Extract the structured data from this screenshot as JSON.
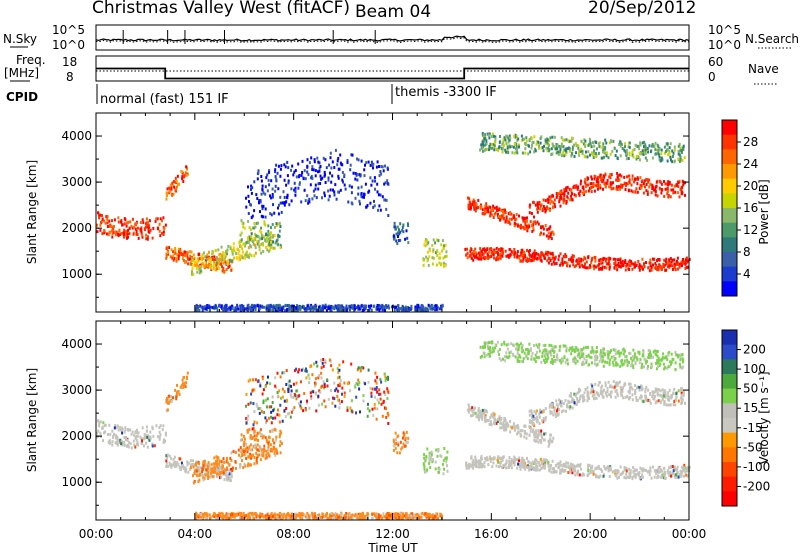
{
  "header": {
    "station": "Christmas Valley West (fitACF)",
    "beam": "Beam 04",
    "date": "20/Sep/2012"
  },
  "noise_panel": {
    "left_label": "N.Sky",
    "left_ticks": [
      "10^5",
      "10^0"
    ],
    "right_ticks": [
      "10^5",
      "10^0"
    ],
    "right_label": "N.Search"
  },
  "freq_panel": {
    "left_label_line1": "Freq.",
    "left_label_line2": "[MHz]",
    "left_ticks": [
      "18",
      "8"
    ],
    "right_ticks": [
      "60",
      "0"
    ],
    "right_label": "Nave"
  },
  "cpid": {
    "label": "CPID",
    "segments": [
      {
        "text": "normal (fast) 151 IF"
      },
      {
        "text": "themis -3300 IF"
      }
    ]
  },
  "colorbars": {
    "power": {
      "title": "Power [dB]",
      "ticks": [
        "28",
        "24",
        "20",
        "16",
        "12",
        "8",
        "4"
      ],
      "colors": [
        "#ff0000",
        "#ff3300",
        "#ff6600",
        "#ff9900",
        "#ffcc00",
        "#c8d400",
        "#8ab86a",
        "#4c9a6a",
        "#2e7a7a",
        "#3b5fa8",
        "#1a3ccf",
        "#0000ff"
      ]
    },
    "velocity": {
      "title": "Velocity [m s⁻¹]",
      "ticks": [
        "200",
        "100",
        "50",
        "15",
        "-15",
        "-50",
        "-100",
        "-200"
      ],
      "colors": [
        "#1a2fb0",
        "#2b4bc9",
        "#2d7a5a",
        "#4caa3c",
        "#7bd24a",
        "#c0c0b8",
        "#c8c8c0",
        "#ff9900",
        "#ff7700",
        "#ff4400",
        "#ff1a00",
        "#ff0000"
      ]
    }
  },
  "chart_data": [
    {
      "type": "heatmap",
      "title": "Power [dB]",
      "xlabel": "Time UT",
      "ylabel": "Slant Range [km]",
      "x_ticks": [
        "00:00",
        "04:00",
        "08:00",
        "12:00",
        "16:00",
        "20:00",
        "00:00"
      ],
      "y_ticks": [
        "1000",
        "2000",
        "3000",
        "4000"
      ],
      "xlim": [
        0,
        24
      ],
      "ylim": [
        180,
        4500
      ],
      "colorbar_ticks": [
        4,
        8,
        12,
        16,
        20,
        24,
        28
      ],
      "colorbar_range": [
        0,
        30
      ]
    },
    {
      "type": "heatmap",
      "title": "Velocity [m s⁻¹]",
      "xlabel": "Time UT",
      "ylabel": "Slant Range [km]",
      "x_ticks": [
        "00:00",
        "04:00",
        "08:00",
        "12:00",
        "16:00",
        "20:00",
        "00:00"
      ],
      "y_ticks": [
        "1000",
        "2000",
        "3000",
        "4000"
      ],
      "xlim": [
        0,
        24
      ],
      "ylim": [
        180,
        4500
      ],
      "colorbar_ticks": [
        -200,
        -100,
        -50,
        -15,
        15,
        50,
        100,
        200
      ]
    },
    {
      "type": "line",
      "title": "Freq./Nave",
      "ylabel": "Freq. [MHz]",
      "series": [
        {
          "x": [
            0,
            2.8,
            2.8,
            14.9,
            14.9,
            24
          ],
          "y": [
            13,
            13,
            9,
            9,
            13,
            13
          ]
        }
      ],
      "ylim": [
        8,
        18
      ]
    }
  ],
  "x_axis": {
    "title": "Time UT",
    "ticks": [
      "00:00",
      "04:00",
      "08:00",
      "12:00",
      "16:00",
      "20:00",
      "00:00"
    ]
  },
  "y_axis": {
    "title": "Slant Range [km]",
    "ticks": [
      "1000",
      "2000",
      "3000",
      "4000"
    ]
  }
}
